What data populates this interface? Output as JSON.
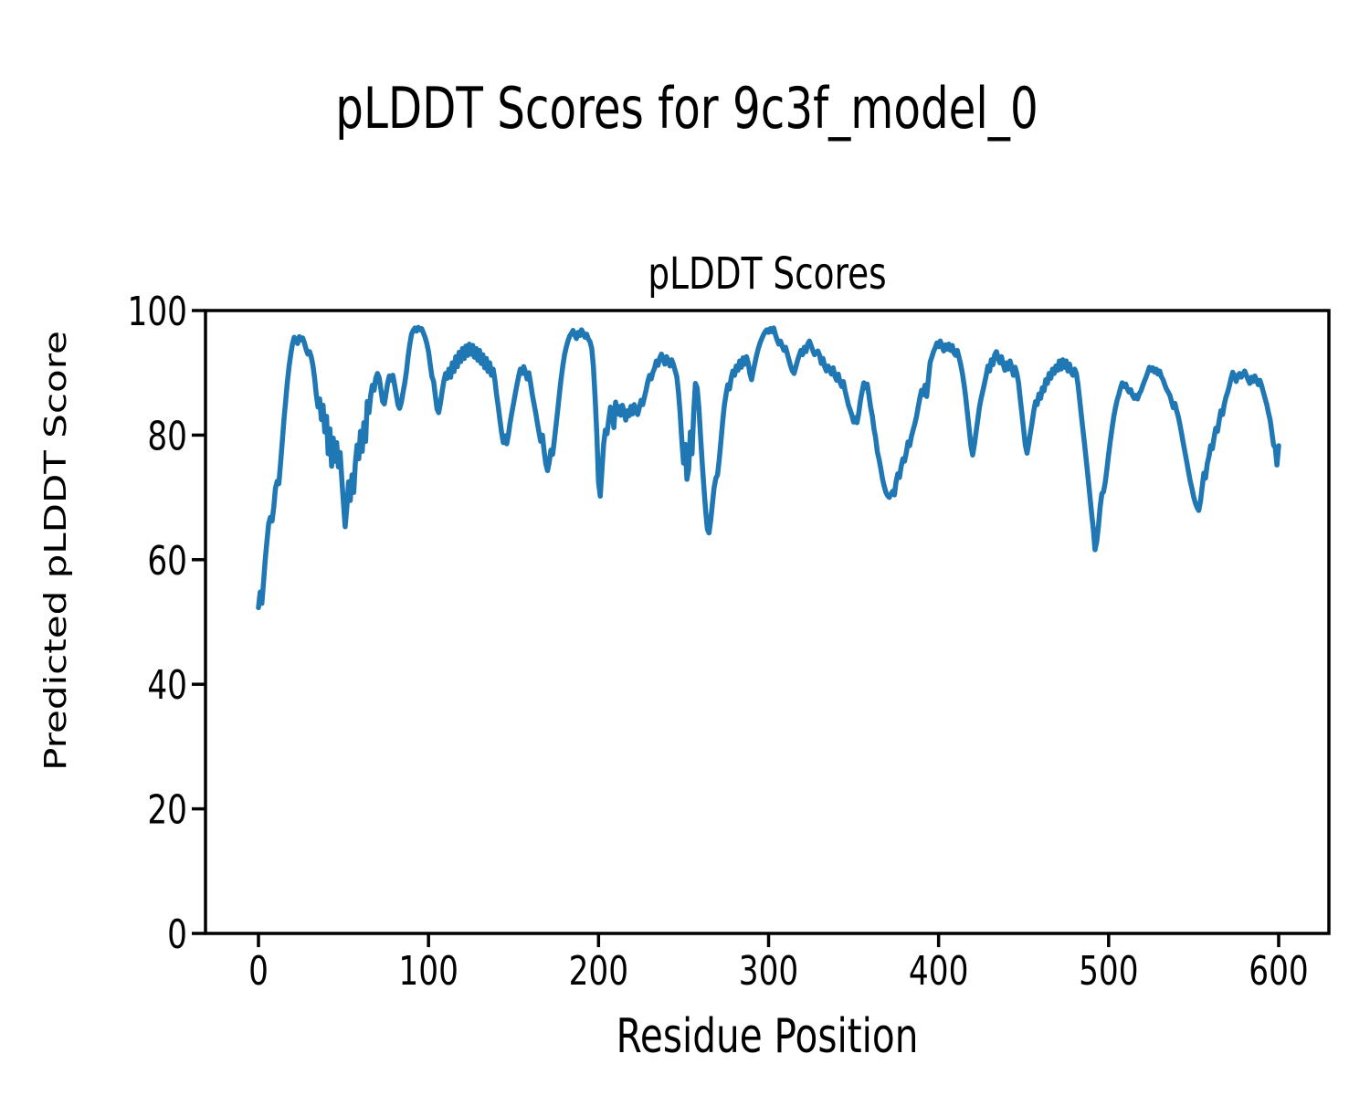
{
  "figure": {
    "suptitle": "pLDDT Scores for 9c3f_model_0"
  },
  "chart_data": {
    "type": "line",
    "title": "pLDDT Scores",
    "xlabel": "Residue Position",
    "ylabel": "Predicted pLDDT Score",
    "legend": null,
    "grid": false,
    "line_color": "#1f77b4",
    "xlim": [
      -31,
      630
    ],
    "ylim": [
      0,
      100
    ],
    "x_ticks": [
      0,
      100,
      200,
      300,
      400,
      500,
      600
    ],
    "y_ticks": [
      0,
      20,
      40,
      60,
      80,
      100
    ],
    "x_start": 0,
    "x_step": 1,
    "values": [
      52.3,
      54.8,
      53.0,
      56.5,
      60.0,
      63.0,
      65.8,
      66.8,
      66.2,
      68.5,
      71.5,
      72.6,
      72.2,
      75.5,
      79.0,
      82.5,
      85.5,
      88.5,
      91.0,
      93.0,
      94.6,
      95.7,
      95.2,
      94.7,
      95.8,
      95.3,
      95.6,
      94.8,
      93.8,
      93.0,
      93.4,
      92.6,
      91.2,
      89.2,
      86.5,
      84.5,
      85.8,
      82.5,
      84.8,
      80.5,
      83.0,
      77.0,
      81.0,
      75.0,
      79.5,
      75.8,
      78.8,
      74.9,
      77.2,
      73.0,
      69.0,
      65.3,
      68.5,
      72.5,
      69.5,
      73.6,
      70.8,
      75.6,
      78.4,
      76.2,
      80.6,
      77.4,
      82.0,
      79.0,
      85.4,
      83.6,
      86.4,
      88.0,
      87.2,
      89.2,
      89.9,
      89.2,
      87.4,
      85.4,
      85.0,
      86.6,
      88.4,
      89.5,
      88.8,
      89.6,
      88.2,
      86.6,
      84.9,
      84.3,
      85.2,
      86.8,
      88.3,
      90.2,
      92.6,
      94.6,
      96.2,
      96.8,
      97.2,
      96.7,
      97.3,
      96.9,
      97.1,
      96.4,
      95.7,
      94.7,
      93.4,
      91.4,
      89.4,
      88.6,
      86.4,
      84.2,
      83.6,
      85.1,
      87.0,
      88.6,
      89.9,
      89.1,
      90.6,
      89.3,
      91.6,
      90.2,
      92.6,
      91.0,
      93.3,
      91.8,
      93.9,
      92.3,
      94.3,
      92.8,
      94.6,
      93.0,
      94.4,
      92.5,
      93.9,
      92.0,
      93.6,
      91.5,
      92.9,
      90.8,
      92.3,
      90.2,
      91.6,
      89.6,
      90.6,
      88.9,
      86.6,
      84.6,
      82.4,
      80.4,
      78.8,
      79.9,
      78.6,
      80.1,
      82.0,
      83.6,
      85.1,
      86.6,
      88.1,
      89.4,
      90.6,
      89.9,
      91.0,
      90.1,
      89.0,
      90.0,
      88.4,
      86.6,
      85.1,
      83.6,
      82.0,
      80.4,
      79.0,
      80.0,
      77.4,
      75.4,
      74.3,
      75.6,
      77.6,
      76.9,
      79.1,
      81.6,
      84.1,
      86.6,
      89.1,
      91.1,
      92.9,
      94.1,
      95.1,
      95.9,
      96.3,
      96.8,
      96.1,
      95.5,
      96.5,
      96.0,
      96.9,
      96.4,
      95.7,
      96.2,
      95.4,
      95.0,
      93.9,
      91.0,
      86.0,
      80.0,
      72.5,
      70.2,
      74.5,
      78.5,
      80.8,
      80.2,
      82.5,
      84.5,
      83.8,
      81.2,
      85.3,
      83.4,
      84.6,
      83.2,
      84.8,
      83.8,
      82.4,
      83.9,
      83.1,
      84.6,
      83.4,
      84.9,
      84.1,
      83.3,
      84.4,
      85.6,
      84.9,
      86.1,
      87.3,
      88.6,
      89.6,
      89.0,
      90.1,
      90.8,
      91.9,
      91.2,
      92.4,
      93.0,
      92.2,
      91.4,
      92.6,
      91.9,
      91.1,
      92.1,
      91.4,
      90.4,
      89.4,
      87.0,
      83.5,
      79.0,
      75.5,
      78.5,
      72.9,
      74.5,
      80.5,
      77.0,
      83.9,
      88.3,
      87.6,
      84.4,
      79.9,
      75.4,
      71.4,
      67.9,
      64.9,
      64.3,
      66.4,
      69.1,
      71.6,
      73.1,
      73.6,
      76.1,
      79.1,
      82.1,
      84.8,
      86.6,
      88.1,
      87.4,
      89.1,
      90.3,
      89.6,
      91.1,
      90.4,
      91.9,
      90.9,
      92.4,
      91.4,
      92.6,
      91.6,
      89.9,
      88.9,
      90.3,
      91.6,
      92.9,
      93.9,
      94.8,
      95.5,
      96.1,
      96.6,
      96.9,
      96.5,
      97.1,
      96.6,
      97.2,
      96.2,
      95.3,
      94.6,
      95.1,
      94.3,
      93.6,
      94.1,
      93.1,
      92.1,
      91.1,
      90.3,
      89.9,
      90.9,
      91.9,
      92.8,
      93.6,
      92.9,
      94.1,
      93.4,
      94.6,
      95.1,
      94.4,
      93.6,
      92.9,
      93.3,
      93.5,
      92.8,
      91.5,
      92.3,
      91.0,
      90.3,
      91.1,
      90.5,
      89.8,
      90.8,
      89.5,
      88.8,
      89.8,
      88.5,
      87.8,
      88.6,
      87.1,
      86.0,
      84.8,
      84.0,
      83.2,
      82.1,
      82.8,
      82.0,
      83.5,
      85.5,
      87.0,
      88.4,
      87.6,
      88.2,
      86.5,
      84.5,
      83.1,
      81.0,
      79.5,
      77.3,
      76.1,
      74.6,
      73.0,
      71.8,
      70.8,
      70.3,
      70.0,
      70.5,
      71.0,
      70.4,
      72.5,
      73.8,
      73.2,
      75.0,
      76.2,
      75.8,
      77.2,
      78.9,
      78.3,
      79.8,
      80.8,
      81.8,
      83.0,
      84.5,
      86.0,
      87.2,
      86.5,
      88.0,
      86.2,
      89.0,
      91.7,
      92.5,
      93.4,
      94.0,
      94.8,
      94.2,
      95.1,
      94.3,
      93.5,
      94.5,
      93.8,
      94.6,
      93.6,
      94.4,
      93.2,
      92.8,
      93.6,
      92.5,
      91.3,
      89.9,
      88.1,
      85.9,
      83.4,
      80.9,
      78.4,
      76.8,
      78.4,
      80.4,
      82.4,
      84.4,
      85.9,
      87.1,
      88.3,
      89.6,
      91.1,
      90.3,
      92.1,
      91.3,
      92.9,
      93.4,
      92.4,
      91.6,
      92.6,
      91.4,
      90.4,
      91.6,
      90.6,
      91.9,
      90.9,
      89.6,
      90.9,
      89.9,
      88.4,
      85.9,
      83.4,
      80.9,
      78.4,
      77.1,
      78.6,
      80.4,
      82.1,
      83.9,
      85.4,
      84.9,
      86.6,
      85.9,
      87.6,
      87.1,
      88.9,
      88.3,
      89.9,
      89.1,
      90.6,
      89.9,
      91.1,
      90.4,
      91.9,
      90.6,
      92.1,
      90.9,
      91.9,
      90.3,
      91.4,
      90.1,
      89.6,
      90.6,
      89.9,
      88.1,
      85.6,
      83.1,
      80.6,
      78.1,
      75.6,
      72.9,
      70.1,
      67.4,
      64.9,
      61.6,
      62.9,
      65.4,
      68.4,
      70.6,
      70.9,
      72.4,
      74.6,
      76.9,
      79.1,
      81.1,
      82.9,
      84.4,
      85.6,
      86.5,
      87.6,
      88.4,
      87.8,
      88.2,
      87.4,
      86.9,
      87.3,
      86.4,
      85.9,
      86.4,
      85.8,
      86.6,
      87.1,
      87.9,
      88.6,
      89.3,
      90.1,
      90.9,
      90.4,
      90.8,
      90.1,
      90.6,
      89.8,
      90.3,
      89.4,
      88.9,
      88.1,
      87.4,
      86.9,
      86.4,
      85.4,
      84.4,
      85.1,
      83.9,
      82.9,
      81.6,
      80.1,
      78.6,
      77.1,
      75.6,
      74.1,
      72.6,
      71.4,
      70.1,
      69.1,
      68.4,
      67.9,
      69.4,
      71.6,
      73.9,
      73.1,
      75.4,
      76.6,
      78.3,
      77.8,
      79.6,
      81.1,
      80.6,
      82.3,
      83.9,
      83.3,
      84.9,
      86.1,
      86.9,
      87.9,
      89.1,
      90.1,
      89.4,
      88.6,
      89.6,
      89.9,
      89.3,
      89.8,
      90.3,
      89.6,
      88.9,
      88.3,
      89.3,
      88.6,
      89.5,
      88.8,
      88.1,
      88.8,
      87.9,
      86.9,
      85.9,
      84.9,
      83.6,
      82.4,
      80.4,
      78.4,
      78.0,
      75.2,
      78.3
    ]
  }
}
